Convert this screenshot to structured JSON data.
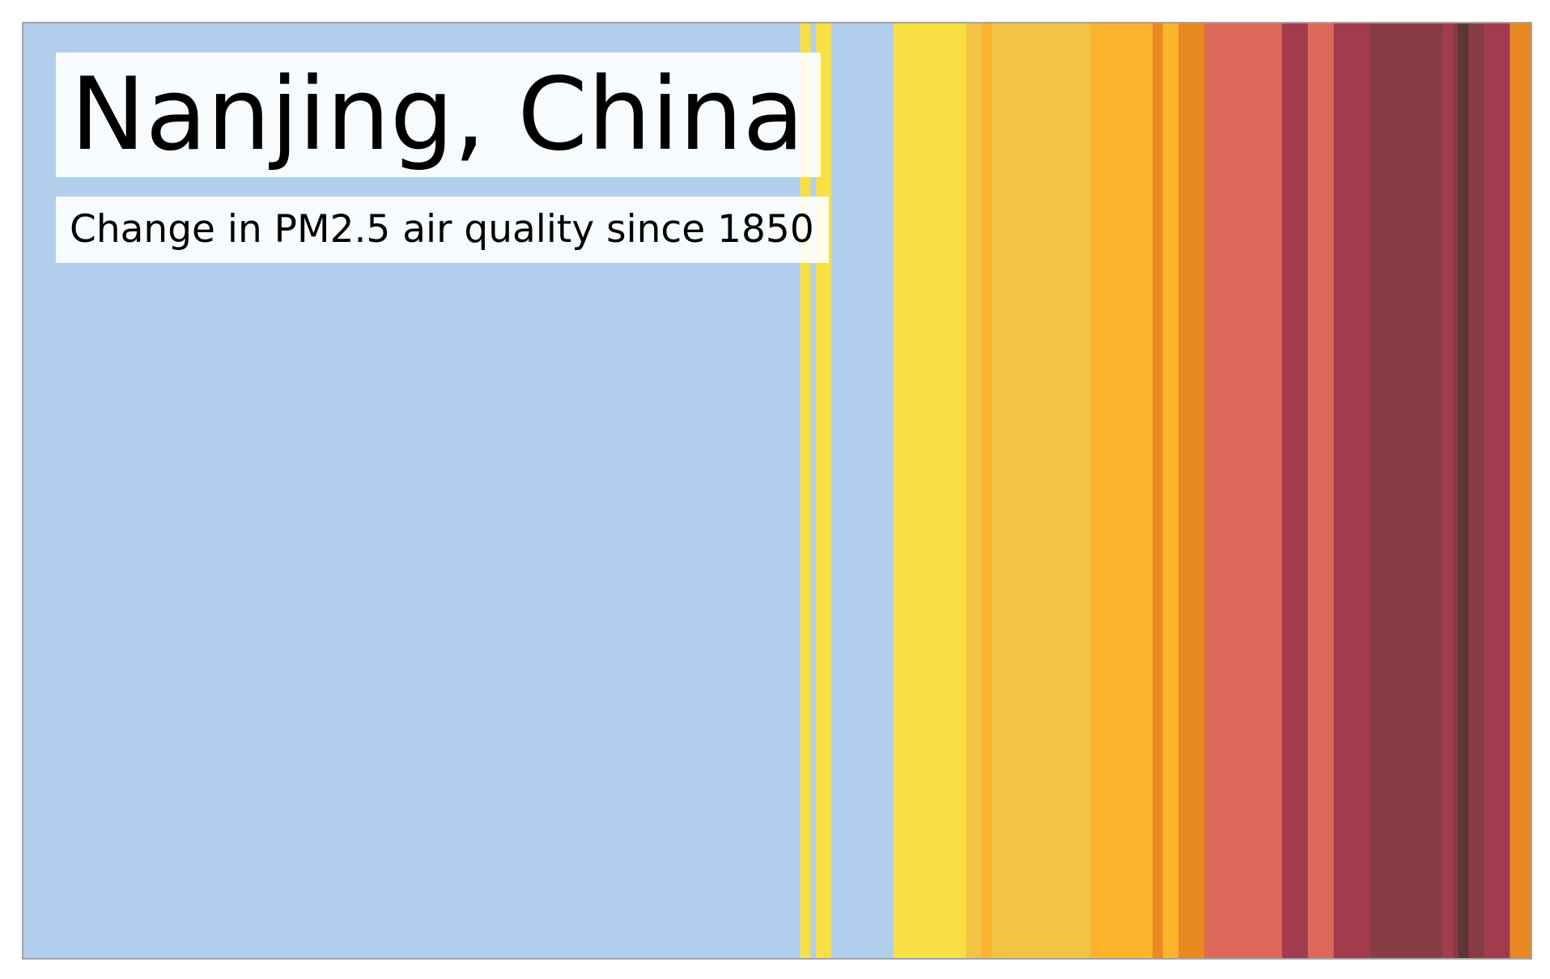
{
  "chart_data": {
    "type": "heatmap",
    "title": "Nanjing, China",
    "subtitle": "Change in PM2.5 air quality since 1850",
    "x_start": 1850,
    "stripes": [
      {
        "years": 150,
        "color": "#b1cfed"
      },
      {
        "years": 2,
        "color": "#f8e044"
      },
      {
        "years": 1,
        "color": "#b1cfed"
      },
      {
        "years": 3,
        "color": "#f8e044"
      },
      {
        "years": 12,
        "color": "#b1cfed"
      },
      {
        "years": 14,
        "color": "#f8e044"
      },
      {
        "years": 3,
        "color": "#f3c346"
      },
      {
        "years": 2,
        "color": "#fbb42d"
      },
      {
        "years": 19,
        "color": "#f3c346"
      },
      {
        "years": 12,
        "color": "#fcb42c"
      },
      {
        "years": 2,
        "color": "#e88922"
      },
      {
        "years": 3,
        "color": "#fcb42c"
      },
      {
        "years": 5,
        "color": "#e88922"
      },
      {
        "years": 15,
        "color": "#dd6758"
      },
      {
        "years": 5,
        "color": "#a33b4f"
      },
      {
        "years": 5,
        "color": "#dd6758"
      },
      {
        "years": 7,
        "color": "#a33b4f"
      },
      {
        "years": 14,
        "color": "#873c46"
      },
      {
        "years": 2,
        "color": "#a33b4f"
      },
      {
        "years": 1,
        "color": "#873c46"
      },
      {
        "years": 2,
        "color": "#5e3535"
      },
      {
        "years": 3,
        "color": "#873c46"
      },
      {
        "years": 5,
        "color": "#a33b4f"
      },
      {
        "years": 2,
        "color": "#e88922"
      },
      {
        "years": 2,
        "color": "#e88922"
      }
    ]
  }
}
